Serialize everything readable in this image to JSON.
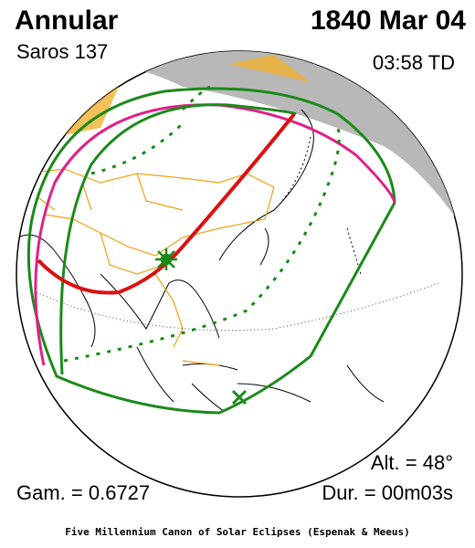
{
  "header": {
    "type": "Annular",
    "saros": "Saros 137",
    "date": "1840 Mar 04",
    "time": "03:58 TD"
  },
  "stats": {
    "altitude": "Alt. = 48°",
    "gamma": "Gam. = 0.6727",
    "duration": "Dur. = 00m03s"
  },
  "footer": "Five Millennium Canon of Solar Eclipses (Espenak & Meeus)"
}
